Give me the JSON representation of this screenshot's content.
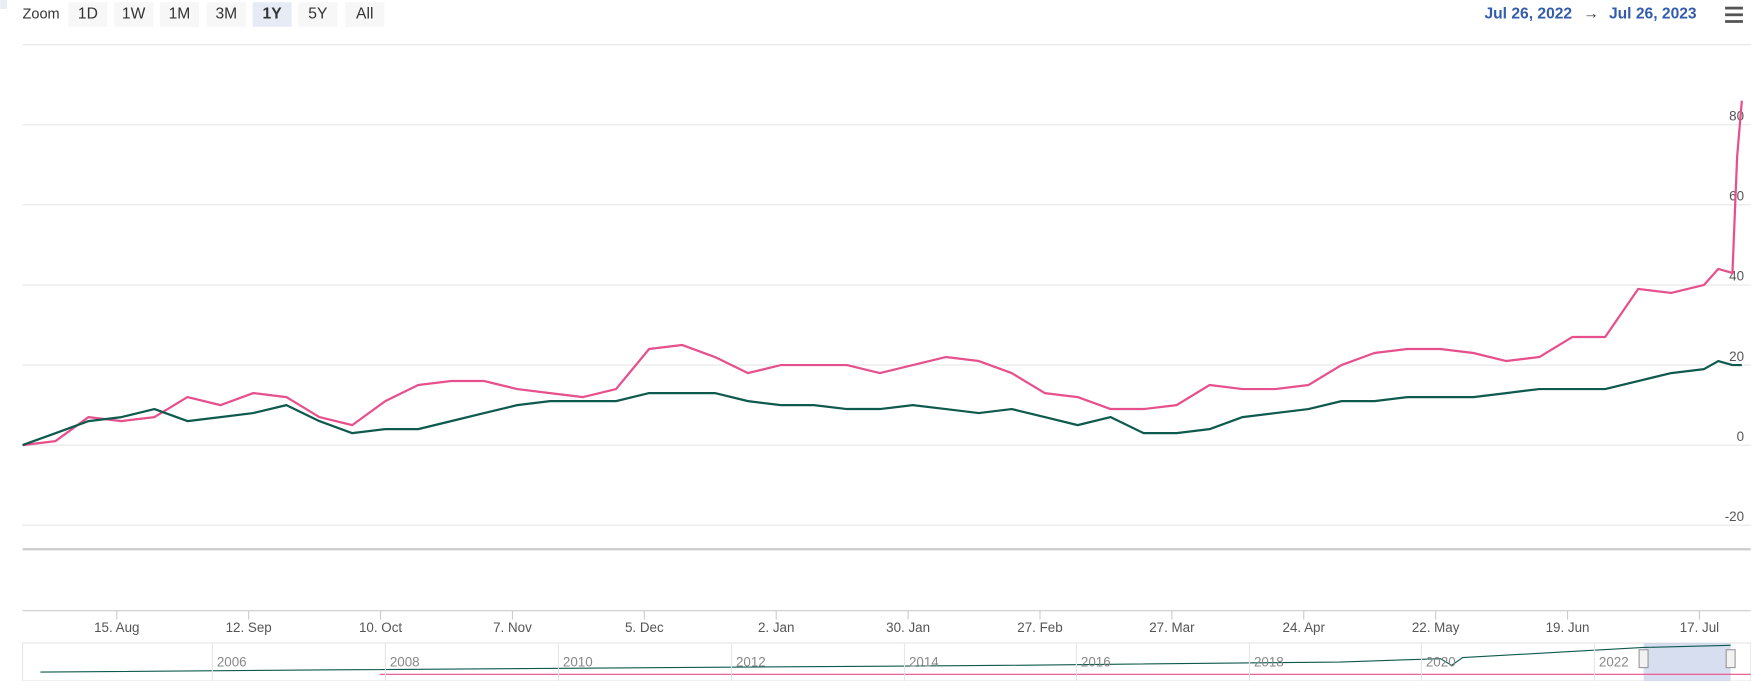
{
  "ui": {
    "zoom_label": "Zoom",
    "buttons": [
      "1D",
      "1W",
      "1M",
      "3M",
      "1Y",
      "5Y",
      "All"
    ],
    "selected": "1Y",
    "range_from": "Jul 26, 2022",
    "range_arrow": "→",
    "range_to": "Jul 26, 2023"
  },
  "navigator": {
    "years": [
      "2006",
      "2008",
      "2010",
      "2012",
      "2014",
      "2016",
      "2018",
      "2020",
      "2022"
    ]
  },
  "chart_data": {
    "type": "line",
    "x": [
      "2022-07-26",
      "2022-08-02",
      "2022-08-09",
      "2022-08-16",
      "2022-08-23",
      "2022-08-30",
      "2022-09-06",
      "2022-09-13",
      "2022-09-20",
      "2022-09-27",
      "2022-10-04",
      "2022-10-11",
      "2022-10-18",
      "2022-10-25",
      "2022-11-01",
      "2022-11-08",
      "2022-11-15",
      "2022-11-22",
      "2022-11-29",
      "2022-12-06",
      "2022-12-13",
      "2022-12-20",
      "2022-12-27",
      "2023-01-03",
      "2023-01-10",
      "2023-01-17",
      "2023-01-24",
      "2023-01-31",
      "2023-02-07",
      "2023-02-14",
      "2023-02-21",
      "2023-02-28",
      "2023-03-07",
      "2023-03-14",
      "2023-03-21",
      "2023-03-28",
      "2023-04-04",
      "2023-04-11",
      "2023-04-18",
      "2023-04-25",
      "2023-05-02",
      "2023-05-09",
      "2023-05-16",
      "2023-05-23",
      "2023-05-30",
      "2023-06-06",
      "2023-06-13",
      "2023-06-20",
      "2023-06-27",
      "2023-07-04",
      "2023-07-11",
      "2023-07-18",
      "2023-07-21",
      "2023-07-24",
      "2023-07-25",
      "2023-07-26"
    ],
    "series": [
      {
        "color": "#e6508c",
        "values": [
          0,
          1,
          7,
          6,
          7,
          12,
          10,
          13,
          12,
          7,
          5,
          11,
          15,
          16,
          16,
          14,
          13,
          12,
          14,
          24,
          25,
          22,
          18,
          20,
          20,
          20,
          18,
          20,
          22,
          21,
          18,
          13,
          12,
          9,
          9,
          10,
          15,
          14,
          14,
          15,
          20,
          23,
          24,
          24,
          23,
          21,
          22,
          27,
          27,
          39,
          38,
          40,
          44,
          43,
          72,
          86
        ]
      },
      {
        "color": "#0e5a4e",
        "values": [
          0,
          3,
          6,
          7,
          9,
          6,
          7,
          8,
          10,
          6,
          3,
          4,
          4,
          6,
          8,
          10,
          11,
          11,
          11,
          13,
          13,
          13,
          11,
          10,
          10,
          9,
          9,
          10,
          9,
          8,
          9,
          7,
          5,
          7,
          3,
          3,
          4,
          7,
          8,
          9,
          11,
          11,
          12,
          12,
          12,
          13,
          14,
          14,
          14,
          16,
          18,
          19,
          21,
          20,
          20,
          20
        ]
      }
    ],
    "xlim": [
      "2022-07-26",
      "2023-07-26"
    ],
    "xticks": [
      {
        "value": "2022-08-15",
        "label": "15. Aug"
      },
      {
        "value": "2022-09-12",
        "label": "12. Sep"
      },
      {
        "value": "2022-10-10",
        "label": "10. Oct"
      },
      {
        "value": "2022-11-07",
        "label": "7. Nov"
      },
      {
        "value": "2022-12-05",
        "label": "5. Dec"
      },
      {
        "value": "2023-01-02",
        "label": "2. Jan"
      },
      {
        "value": "2023-01-30",
        "label": "30. Jan"
      },
      {
        "value": "2023-02-27",
        "label": "27. Feb"
      },
      {
        "value": "2023-03-27",
        "label": "27. Mar"
      },
      {
        "value": "2023-04-24",
        "label": "24. Apr"
      },
      {
        "value": "2023-05-22",
        "label": "22. May"
      },
      {
        "value": "2023-06-19",
        "label": "19. Jun"
      },
      {
        "value": "2023-07-17",
        "label": "17. Jul"
      }
    ],
    "ylim": [
      -26,
      100
    ],
    "yticks": [
      -20,
      0,
      20,
      40,
      60,
      80
    ],
    "grid": true
  }
}
